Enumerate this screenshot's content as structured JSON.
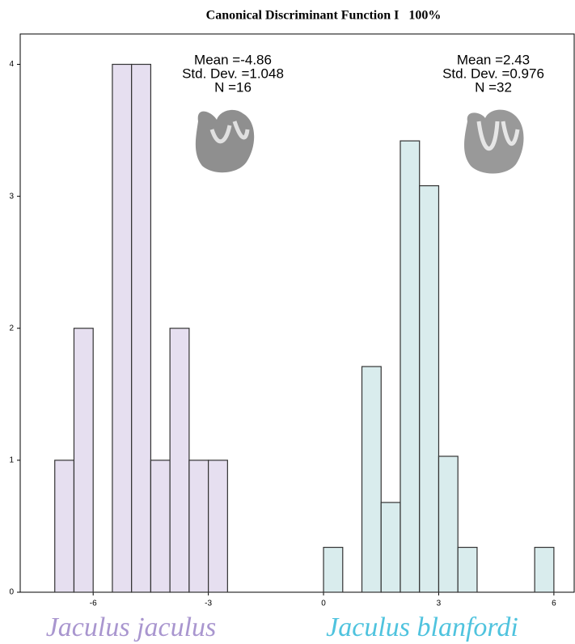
{
  "chart_data": {
    "type": "histogram",
    "title": "Canonical Discriminant Function I   100%",
    "xlim": [
      -7.9,
      6.55
    ],
    "ylim": [
      0,
      4.23
    ],
    "xticks": [
      -6,
      -3,
      0,
      3,
      6
    ],
    "yticks": [
      0,
      1,
      2,
      3,
      4
    ],
    "series": [
      {
        "name": "Jaculus jaculus",
        "color": "#e6dff0",
        "label_color": "#a996cf",
        "bins": [
          -7,
          -6.5,
          -6,
          -5.5,
          -5,
          -4.5,
          -4,
          -3.5,
          -3,
          -2.5
        ],
        "values": [
          1,
          2,
          0,
          4,
          4,
          1,
          2,
          1,
          1
        ],
        "stats": [
          "Mean =-4.86",
          "Std. Dev. =1.048",
          "N =16"
        ]
      },
      {
        "name": "Jaculus blanfordi",
        "color": "#d9eced",
        "label_color": "#4fc3de",
        "bins": [
          0,
          0.5,
          1,
          1.5,
          2,
          2.5,
          3,
          3.5,
          4,
          4.5,
          5,
          5.5,
          6
        ],
        "values": [
          0.34,
          0,
          1.71,
          0.68,
          3.42,
          3.08,
          1.03,
          0.34,
          0,
          0,
          0,
          0.34
        ],
        "stats": [
          "Mean =2.43",
          "Std. Dev. =0.976",
          "N =32"
        ]
      }
    ]
  }
}
